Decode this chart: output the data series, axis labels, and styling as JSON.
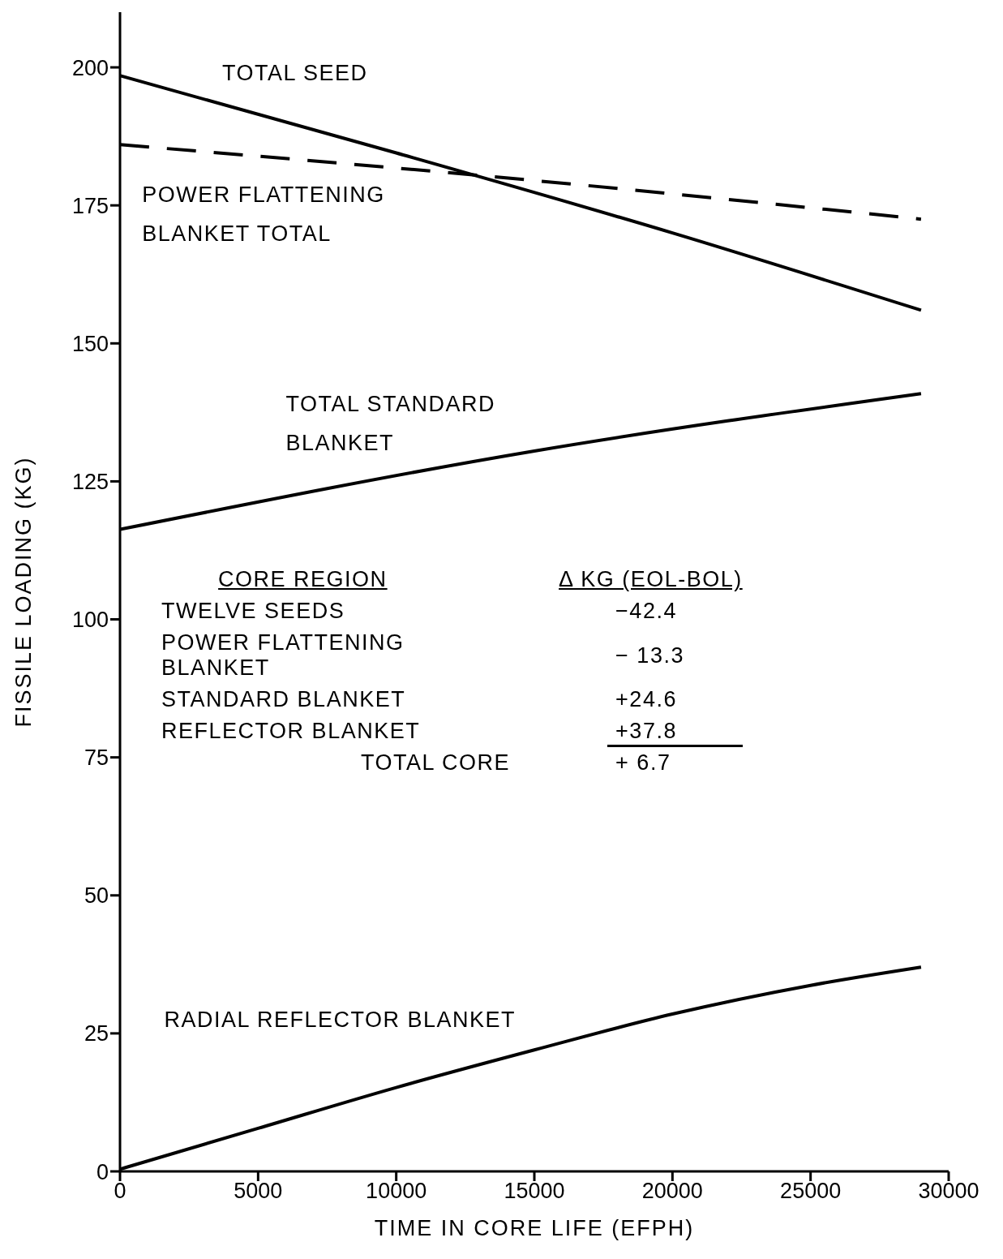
{
  "chart_data": {
    "type": "line",
    "xlabel": "TIME IN CORE LIFE (EFPH)",
    "ylabel": "FISSILE LOADING (KG)",
    "xlim": [
      0,
      30000
    ],
    "xticks": [
      0,
      5000,
      10000,
      15000,
      20000,
      25000,
      30000
    ],
    "ylim": [
      0,
      210
    ],
    "yticks": [
      0,
      25,
      50,
      75,
      100,
      125,
      150,
      175,
      200
    ],
    "grid": false,
    "legend": false,
    "marker": "none",
    "series": [
      {
        "name": "TOTAL SEED",
        "color": "#000000",
        "line_style": "solid",
        "x": [
          0,
          10000,
          20000,
          29000
        ],
        "values": [
          198.5,
          184.5,
          170,
          156
        ]
      },
      {
        "name": "POWER FLATTENING BLANKET TOTAL",
        "color": "#000000",
        "line_style": "dashed",
        "x": [
          0,
          15000,
          29000
        ],
        "values": [
          186,
          179.5,
          172.5
        ]
      },
      {
        "name": "TOTAL STANDARD BLANKET",
        "color": "#000000",
        "line_style": "solid",
        "x": [
          0,
          15000,
          29000
        ],
        "values": [
          116.3,
          130.5,
          140.9
        ]
      },
      {
        "name": "RADIAL REFLECTOR BLANKET",
        "color": "#000000",
        "line_style": "solid",
        "x": [
          0,
          5000,
          10000,
          15000,
          20000,
          25000,
          29000
        ],
        "values": [
          0.4,
          7.8,
          15.2,
          22,
          28.5,
          33.7,
          37
        ]
      }
    ],
    "annotations": [
      "CORE REGION",
      "Δ KG (EOL-BOL)",
      "TWELVE SEEDS",
      "−42.4",
      "POWER FLATTENING BLANKET",
      "− 13.3",
      "STANDARD BLANKET",
      "+24.6",
      "REFLECTOR BLANKET",
      "+37.8",
      "TOTAL CORE",
      "+ 6.7"
    ]
  }
}
